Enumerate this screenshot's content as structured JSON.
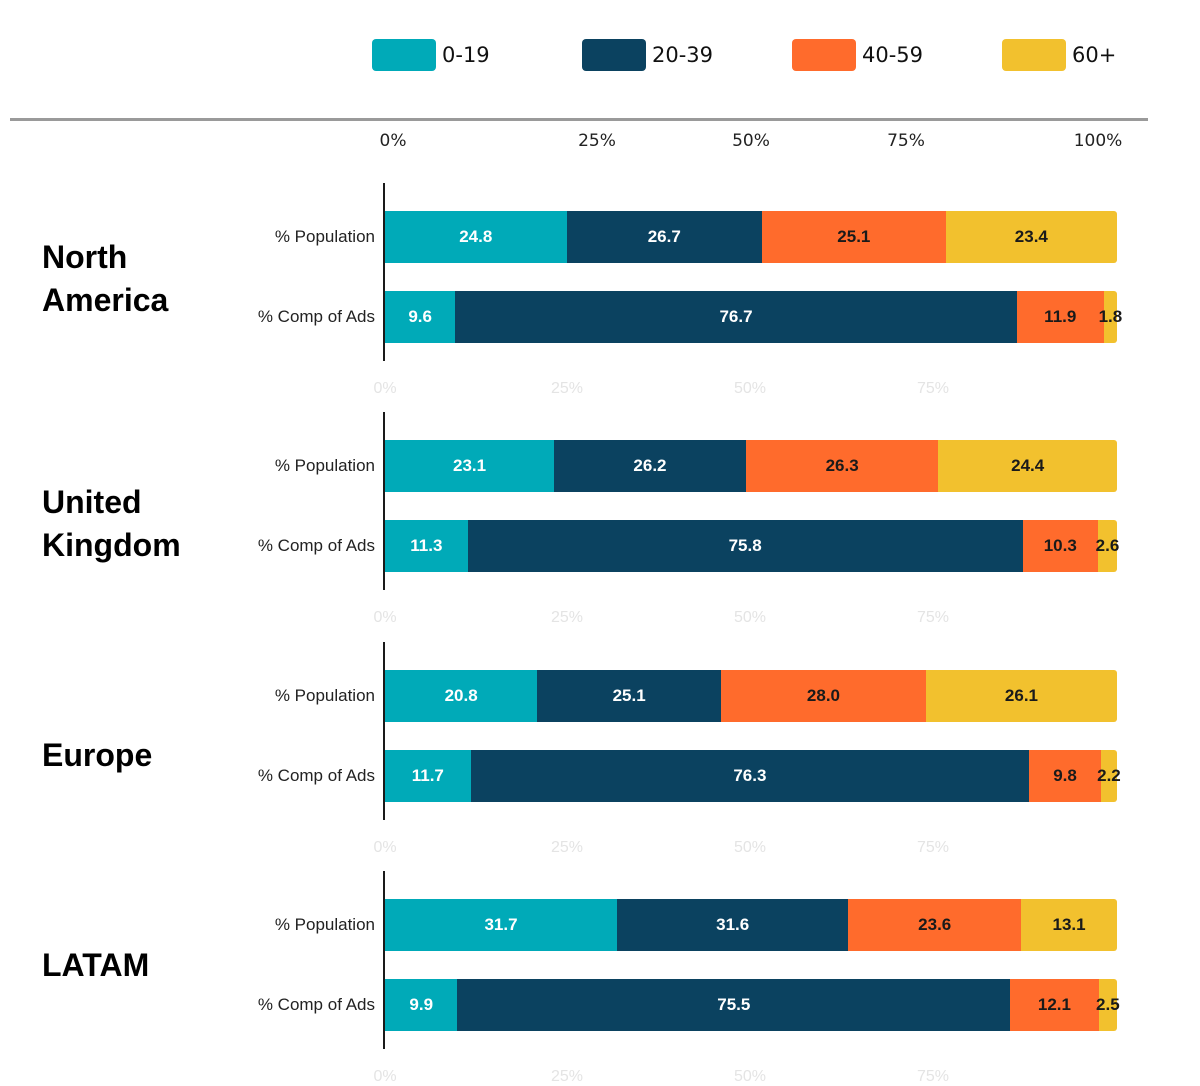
{
  "chart_data": {
    "type": "bar",
    "orientation": "horizontal",
    "stacked": true,
    "title": "",
    "xlabel": "",
    "ylabel": "",
    "xlim": [
      0,
      100
    ],
    "x_ticks": [
      "0%",
      "25%",
      "50%",
      "75%",
      "100%"
    ],
    "ghost_ticks": [
      "0%",
      "25%",
      "50%",
      "75%"
    ],
    "legend_position": "top",
    "legend": [
      {
        "name": "0-19",
        "color": "#00AAB8"
      },
      {
        "name": "20-39",
        "color": "#0B4260"
      },
      {
        "name": "40-59",
        "color": "#FF6B2C"
      },
      {
        "name": "60+",
        "color": "#F2C12E"
      }
    ],
    "regions": [
      {
        "name": "North America",
        "rows": [
          {
            "label": "% Population",
            "values": [
              24.8,
              26.7,
              25.1,
              23.4
            ]
          },
          {
            "label": "% Comp of Ads",
            "values": [
              9.6,
              76.7,
              11.9,
              1.8
            ]
          }
        ]
      },
      {
        "name": "United Kingdom",
        "rows": [
          {
            "label": "% Population",
            "values": [
              23.1,
              26.2,
              26.3,
              24.4
            ]
          },
          {
            "label": "% Comp of Ads",
            "values": [
              11.3,
              75.8,
              10.3,
              2.6
            ]
          }
        ]
      },
      {
        "name": "Europe",
        "rows": [
          {
            "label": "% Population",
            "values": [
              20.8,
              25.1,
              28.0,
              26.1
            ]
          },
          {
            "label": "% Comp of Ads",
            "values": [
              11.7,
              76.3,
              9.8,
              2.2
            ]
          }
        ]
      },
      {
        "name": "LATAM",
        "rows": [
          {
            "label": "% Population",
            "values": [
              31.7,
              31.6,
              23.6,
              13.1
            ]
          },
          {
            "label": "% Comp of Ads",
            "values": [
              9.9,
              75.5,
              12.1,
              2.5
            ]
          }
        ]
      }
    ],
    "label_colors": [
      "#ffffff",
      "#ffffff",
      "#1a1a1a",
      "#1a1a1a"
    ]
  }
}
